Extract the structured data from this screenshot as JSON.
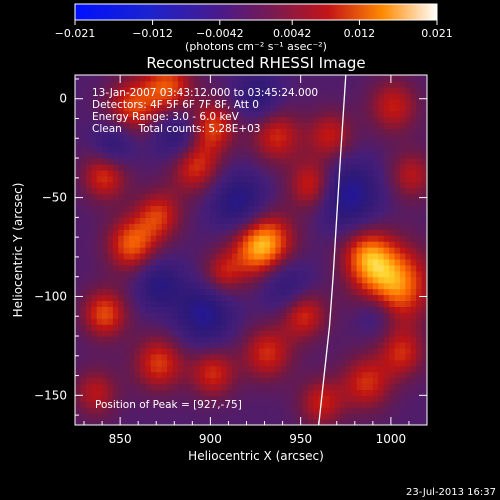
{
  "chart_data": {
    "type": "heatmap",
    "title": "Reconstructed RHESSI Image",
    "xlabel": "Heliocentric X (arcsec)",
    "ylabel": "Heliocentric Y (arcsec)",
    "xlim": [
      825,
      1020
    ],
    "ylim": [
      -165,
      12
    ],
    "x_ticks": [
      850,
      900,
      950,
      1000
    ],
    "y_ticks": [
      0,
      -50,
      -100,
      -150
    ],
    "colorbar": {
      "min": -0.021,
      "max": 0.021,
      "ticks": [
        "-0.021",
        "-0.012",
        "-0.0042",
        "0.0042",
        "0.012",
        "0.021"
      ],
      "unit_label": "(photons cm⁻² s⁻¹ asec⁻²)"
    },
    "annotations": [
      "13-Jan-2007 03:43:12.000 to 03:45:24.000",
      "Detectors: 4F 5F 6F 7F 8F, Att 0",
      "Energy Range: 3.0 - 6.0 keV",
      "Clean     Total counts: 5.28E+03"
    ],
    "peak": {
      "x": 927,
      "y": -75,
      "label": "Position of Peak = [927,-75]"
    },
    "limb_curve": [
      [
        975,
        12
      ],
      [
        972,
        -30
      ],
      [
        970,
        -60
      ],
      [
        968,
        -90
      ],
      [
        966,
        -115
      ],
      [
        963,
        -140
      ],
      [
        960,
        -165
      ]
    ],
    "blobs": [
      {
        "x": 927,
        "y": -75,
        "v": 0.021,
        "s": 12
      },
      {
        "x": 1000,
        "y": -95,
        "v": 0.018,
        "s": 14
      },
      {
        "x": 985,
        "y": -80,
        "v": 0.013,
        "s": 10
      },
      {
        "x": 855,
        "y": -75,
        "v": 0.014,
        "s": 10
      },
      {
        "x": 840,
        "y": -110,
        "v": 0.013,
        "s": 9
      },
      {
        "x": 840,
        "y": -40,
        "v": 0.012,
        "s": 9
      },
      {
        "x": 855,
        "y": -5,
        "v": 0.012,
        "s": 10
      },
      {
        "x": 875,
        "y": 5,
        "v": 0.013,
        "s": 10
      },
      {
        "x": 870,
        "y": -60,
        "v": 0.011,
        "s": 9
      },
      {
        "x": 890,
        "y": -35,
        "v": 0.012,
        "s": 10
      },
      {
        "x": 900,
        "y": -15,
        "v": 0.012,
        "s": 9
      },
      {
        "x": 935,
        "y": -20,
        "v": 0.011,
        "s": 10
      },
      {
        "x": 955,
        "y": -45,
        "v": 0.012,
        "s": 9
      },
      {
        "x": 950,
        "y": -110,
        "v": 0.012,
        "s": 9
      },
      {
        "x": 930,
        "y": -130,
        "v": 0.011,
        "s": 10
      },
      {
        "x": 900,
        "y": -140,
        "v": 0.011,
        "s": 9
      },
      {
        "x": 870,
        "y": -135,
        "v": 0.012,
        "s": 10
      },
      {
        "x": 905,
        "y": -90,
        "v": 0.009,
        "s": 8
      },
      {
        "x": 965,
        "y": -20,
        "v": 0.01,
        "s": 9
      },
      {
        "x": 1000,
        "y": -5,
        "v": 0.01,
        "s": 10
      },
      {
        "x": 1010,
        "y": -40,
        "v": 0.009,
        "s": 9
      },
      {
        "x": 985,
        "y": -145,
        "v": 0.011,
        "s": 10
      },
      {
        "x": 1005,
        "y": -130,
        "v": 0.01,
        "s": 9
      },
      {
        "x": 960,
        "y": -155,
        "v": 0.01,
        "s": 9
      },
      {
        "x": 835,
        "y": -150,
        "v": 0.009,
        "s": 9
      },
      {
        "x": 915,
        "y": -55,
        "v": -0.013,
        "s": 11
      },
      {
        "x": 895,
        "y": -110,
        "v": -0.012,
        "s": 11
      },
      {
        "x": 940,
        "y": -95,
        "v": -0.01,
        "s": 10
      },
      {
        "x": 975,
        "y": -50,
        "v": -0.013,
        "s": 12
      },
      {
        "x": 880,
        "y": -20,
        "v": -0.01,
        "s": 9
      },
      {
        "x": 990,
        "y": -110,
        "v": -0.008,
        "s": 8
      },
      {
        "x": 870,
        "y": -95,
        "v": -0.01,
        "s": 9
      },
      {
        "x": 925,
        "y": 0,
        "v": -0.009,
        "s": 9
      },
      {
        "x": 845,
        "y": -25,
        "v": -0.009,
        "s": 8
      }
    ]
  },
  "footer": {
    "timestamp": "23-Jul-2013 16:37"
  }
}
